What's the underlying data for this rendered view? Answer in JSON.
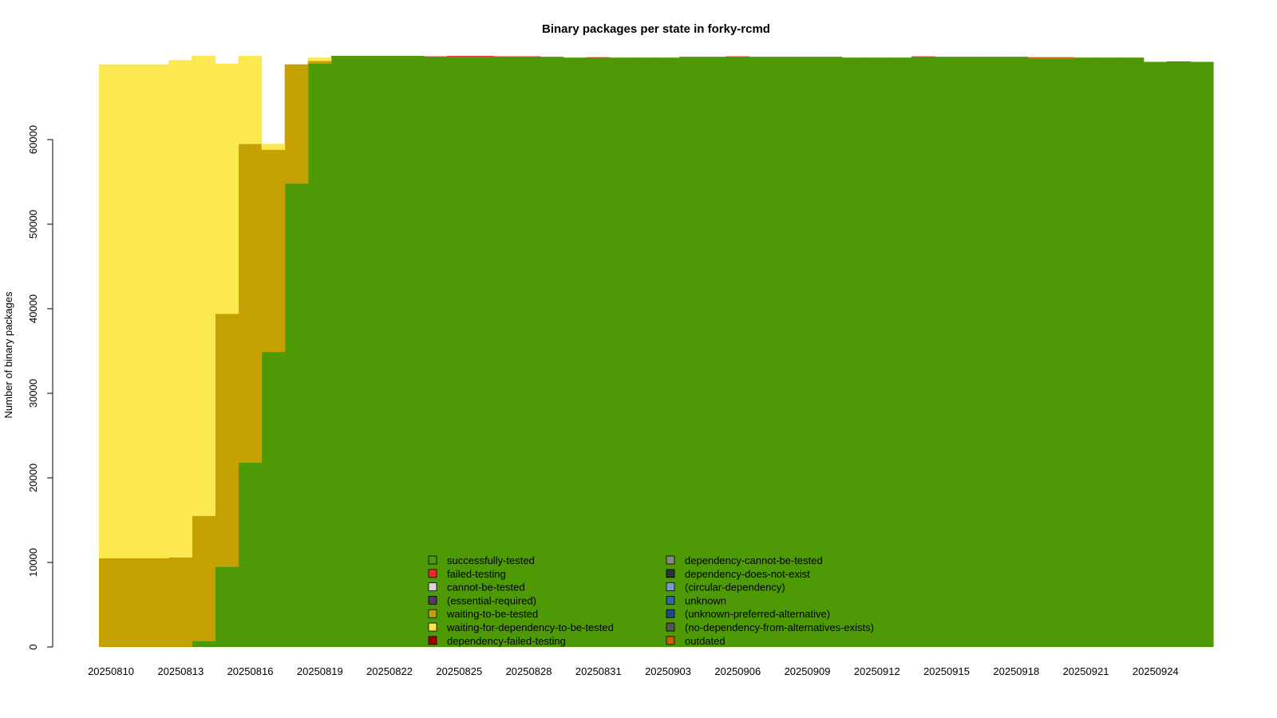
{
  "chart_data": {
    "type": "area",
    "title": "Binary packages per state in forky-rcmd",
    "xlabel": "",
    "ylabel": "Number of binary packages",
    "ylim": [
      0,
      70000
    ],
    "yticks": [
      0,
      10000,
      20000,
      30000,
      40000,
      50000,
      60000
    ],
    "x_tick_labels": [
      "20250810",
      "20250813",
      "20250816",
      "20250819",
      "20250822",
      "20250825",
      "20250828",
      "20250831",
      "20250903",
      "20250906",
      "20250909",
      "20250912",
      "20250915",
      "20250918",
      "20250921",
      "20250924"
    ],
    "dates": [
      "20250810",
      "20250811",
      "20250812",
      "20250813",
      "20250814",
      "20250815",
      "20250816",
      "20250817",
      "20250818",
      "20250819",
      "20250820",
      "20250821",
      "20250822",
      "20250823",
      "20250824",
      "20250825",
      "20250826",
      "20250827",
      "20250828",
      "20250829",
      "20250830",
      "20250831",
      "20250901",
      "20250902",
      "20250903",
      "20250904",
      "20250905",
      "20250906",
      "20250907",
      "20250908",
      "20250909",
      "20250910",
      "20250911",
      "20250912",
      "20250913",
      "20250914",
      "20250915",
      "20250916",
      "20250917",
      "20250918",
      "20250919",
      "20250920",
      "20250921",
      "20250922",
      "20250923",
      "20250924",
      "20250925",
      "20250926"
    ],
    "legend_placement": "bottom-center",
    "series": [
      {
        "name": "successfully-tested",
        "color": "#4e9a06",
        "values": [
          0,
          0,
          0,
          0,
          700,
          9500,
          21800,
          34900,
          54800,
          69000,
          69900,
          69900,
          69900,
          69900,
          69800,
          69800,
          69800,
          69800,
          69800,
          69800,
          69700,
          69700,
          69700,
          69700,
          69700,
          69800,
          69800,
          69800,
          69800,
          69800,
          69800,
          69800,
          69700,
          69700,
          69700,
          69800,
          69800,
          69800,
          69800,
          69800,
          69600,
          69600,
          69700,
          69700,
          69700,
          69200,
          69200,
          69200
        ]
      },
      {
        "name": "failed-testing",
        "color": "#ef2929",
        "values": [
          0,
          0,
          0,
          0,
          0,
          0,
          0,
          0,
          0,
          0,
          0,
          0,
          0,
          0,
          50,
          100,
          100,
          50,
          50,
          0,
          0,
          50,
          0,
          0,
          0,
          0,
          0,
          50,
          0,
          0,
          0,
          0,
          0,
          0,
          0,
          50,
          0,
          0,
          0,
          0,
          0,
          0,
          0,
          0,
          0,
          0,
          50,
          0
        ]
      },
      {
        "name": "waiting-to-be-tested",
        "color": "#c4a000",
        "values": [
          10500,
          10500,
          10500,
          10600,
          14800,
          29900,
          37700,
          23900,
          14100,
          300,
          0,
          0,
          0,
          0,
          0,
          0,
          0,
          0,
          0,
          0,
          0,
          0,
          0,
          0,
          0,
          0,
          0,
          0,
          0,
          0,
          0,
          0,
          0,
          0,
          0,
          0,
          0,
          0,
          0,
          0,
          0,
          0,
          0,
          0,
          0,
          0,
          0,
          0
        ]
      },
      {
        "name": "waiting-for-dependency-to-be-tested",
        "color": "#fce94f",
        "values": [
          58400,
          58400,
          58400,
          58800,
          54400,
          29600,
          10400,
          700,
          0,
          400,
          0,
          0,
          0,
          0,
          0,
          0,
          0,
          0,
          0,
          0,
          0,
          0,
          0,
          0,
          0,
          0,
          0,
          0,
          0,
          0,
          0,
          0,
          0,
          0,
          0,
          0,
          0,
          0,
          0,
          0,
          0,
          0,
          0,
          0,
          0,
          0,
          0,
          0
        ]
      },
      {
        "name": "outdated",
        "color": "#ce5c00",
        "values": [
          0,
          0,
          0,
          0,
          0,
          0,
          0,
          0,
          0,
          0,
          0,
          0,
          0,
          0,
          0,
          0,
          0,
          0,
          0,
          0,
          0,
          0,
          0,
          0,
          0,
          0,
          0,
          0,
          0,
          0,
          0,
          0,
          0,
          0,
          0,
          0,
          0,
          0,
          0,
          0,
          150,
          150,
          0,
          0,
          0,
          0,
          0,
          0
        ]
      }
    ],
    "legend": [
      {
        "name": "successfully-tested",
        "color": "#4e9a06"
      },
      {
        "name": "failed-testing",
        "color": "#ef2929"
      },
      {
        "name": "cannot-be-tested",
        "color": "#d3d7cf"
      },
      {
        "name": "(essential-required)",
        "color": "#5c3566"
      },
      {
        "name": "waiting-to-be-tested",
        "color": "#c4a000"
      },
      {
        "name": "waiting-for-dependency-to-be-tested",
        "color": "#fce94f"
      },
      {
        "name": "dependency-failed-testing",
        "color": "#a40000"
      },
      {
        "name": "dependency-cannot-be-tested",
        "color": "#888a85"
      },
      {
        "name": "dependency-does-not-exist",
        "color": "#2e3436"
      },
      {
        "name": "(circular-dependency)",
        "color": "#729fcf"
      },
      {
        "name": "unknown",
        "color": "#3465a4"
      },
      {
        "name": "(unknown-preferred-alternative)",
        "color": "#204a87"
      },
      {
        "name": "(no-dependency-from-alternatives-exists)",
        "color": "#555753"
      },
      {
        "name": "outdated",
        "color": "#ce5c00"
      }
    ]
  }
}
